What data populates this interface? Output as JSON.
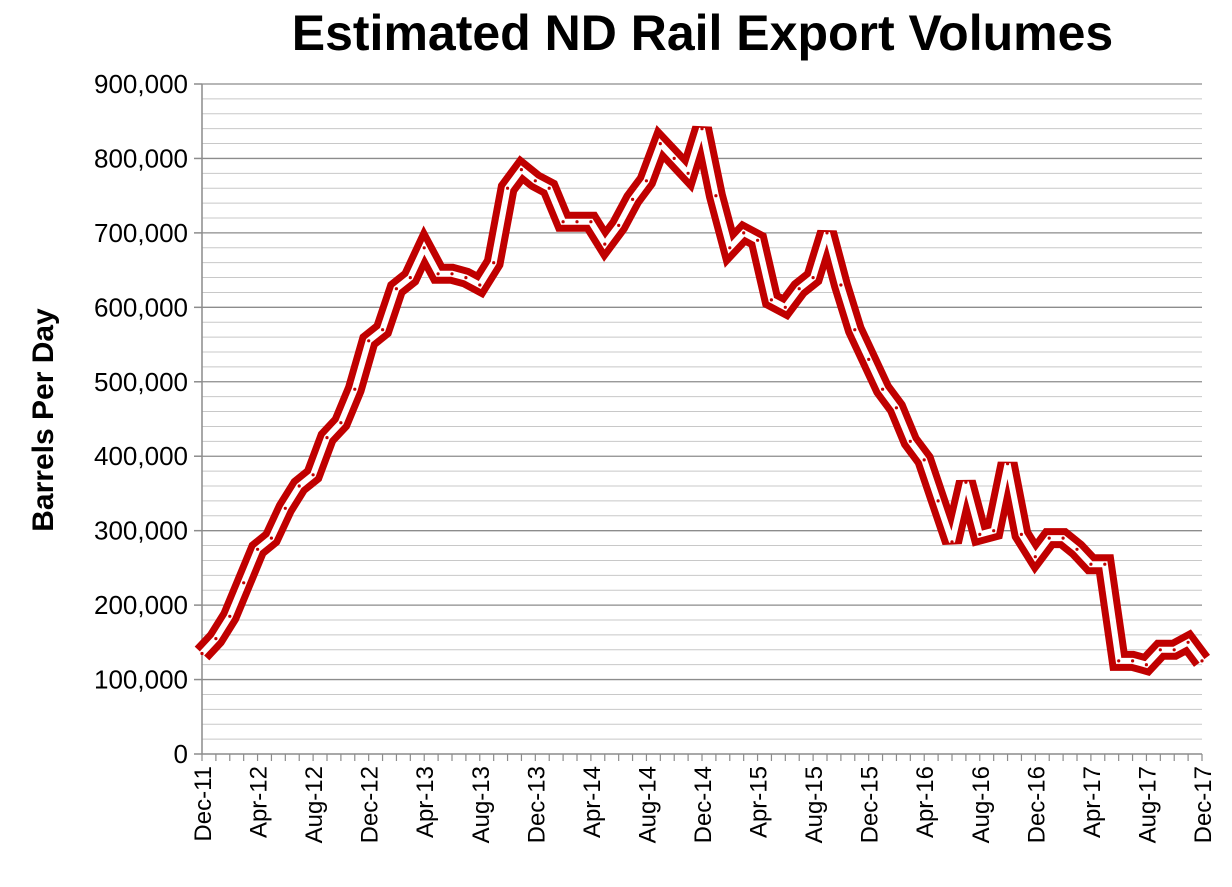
{
  "chart_data": {
    "type": "line",
    "title": "Estimated ND Rail Export Volumes",
    "xlabel": "",
    "ylabel": "Barrels Per Day",
    "ylim": [
      0,
      900000
    ],
    "y_ticks": [
      "0",
      "100,000",
      "200,000",
      "300,000",
      "400,000",
      "500,000",
      "600,000",
      "700,000",
      "800,000",
      "900,000"
    ],
    "x_tick_labels": [
      "Dec-11",
      "Apr-12",
      "Aug-12",
      "Dec-12",
      "Apr-13",
      "Aug-13",
      "Dec-13",
      "Apr-14",
      "Aug-14",
      "Dec-14",
      "Apr-15",
      "Aug-15",
      "Dec-15",
      "Apr-16",
      "Aug-16",
      "Dec-16",
      "Apr-17",
      "Aug-17",
      "Dec-17"
    ],
    "grid": "horizontal major and minor",
    "line_color": "#C00000",
    "x": [
      "Dec-11",
      "Jan-12",
      "Feb-12",
      "Mar-12",
      "Apr-12",
      "May-12",
      "Jun-12",
      "Jul-12",
      "Aug-12",
      "Sep-12",
      "Oct-12",
      "Nov-12",
      "Dec-12",
      "Jan-13",
      "Feb-13",
      "Mar-13",
      "Apr-13",
      "May-13",
      "Jun-13",
      "Jul-13",
      "Aug-13",
      "Sep-13",
      "Oct-13",
      "Nov-13",
      "Dec-13",
      "Jan-14",
      "Feb-14",
      "Mar-14",
      "Apr-14",
      "May-14",
      "Jun-14",
      "Jul-14",
      "Aug-14",
      "Sep-14",
      "Oct-14",
      "Nov-14",
      "Dec-14",
      "Jan-15",
      "Feb-15",
      "Mar-15",
      "Apr-15",
      "May-15",
      "Jun-15",
      "Jul-15",
      "Aug-15",
      "Sep-15",
      "Oct-15",
      "Nov-15",
      "Dec-15",
      "Jan-16",
      "Feb-16",
      "Mar-16",
      "Apr-16",
      "May-16",
      "Jun-16",
      "Jul-16",
      "Aug-16",
      "Sep-16",
      "Oct-16",
      "Nov-16",
      "Dec-16",
      "Jan-17",
      "Feb-17",
      "Mar-17",
      "Apr-17",
      "May-17",
      "Jun-17",
      "Jul-17",
      "Aug-17",
      "Sep-17",
      "Oct-17",
      "Nov-17",
      "Dec-17"
    ],
    "series": [
      {
        "values": [
          135000,
          155000,
          185000,
          230000,
          275000,
          290000,
          330000,
          360000,
          375000,
          425000,
          445000,
          490000,
          555000,
          570000,
          625000,
          640000,
          680000,
          645000,
          645000,
          640000,
          630000,
          660000,
          760000,
          785000,
          770000,
          760000,
          715000,
          715000,
          715000,
          685000,
          710000,
          745000,
          770000,
          820000,
          800000,
          780000,
          840000,
          750000,
          680000,
          700000,
          690000,
          610000,
          600000,
          625000,
          640000,
          700000,
          630000,
          570000,
          530000,
          490000,
          465000,
          420000,
          395000,
          340000,
          285000,
          365000,
          295000,
          300000,
          390000,
          295000,
          265000,
          290000,
          290000,
          275000,
          255000,
          255000,
          125000,
          125000,
          120000,
          140000,
          140000,
          150000,
          125000
        ]
      }
    ]
  }
}
